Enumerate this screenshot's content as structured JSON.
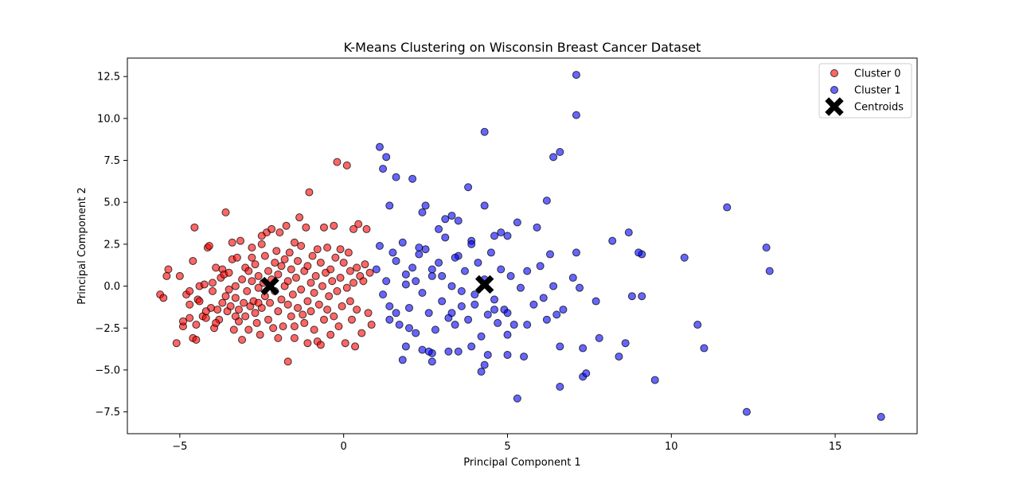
{
  "chart_data": {
    "type": "scatter",
    "title": "K-Means Clustering on Wisconsin Breast Cancer Dataset",
    "xlabel": "Principal Component 1",
    "ylabel": "Principal Component 2",
    "xlim": [
      -6.6,
      17.5
    ],
    "ylim": [
      -8.8,
      13.6
    ],
    "xticks": [
      -5,
      0,
      5,
      10,
      15
    ],
    "xtick_labels": [
      "−5",
      "0",
      "5",
      "10",
      "15"
    ],
    "yticks": [
      -7.5,
      -5.0,
      -2.5,
      0.0,
      2.5,
      5.0,
      7.5,
      10.0,
      12.5
    ],
    "ytick_labels": [
      "−7.5",
      "−5.0",
      "−2.5",
      "0.0",
      "2.5",
      "5.0",
      "7.5",
      "10.0",
      "12.5"
    ],
    "grid": false,
    "legend_position": "top-right",
    "series": [
      {
        "name": "Cluster 0",
        "color": "#ff0000",
        "marker": "circle",
        "points": [
          [
            -5.6,
            -0.5
          ],
          [
            -5.5,
            -0.7
          ],
          [
            -5.4,
            0.6
          ],
          [
            -5.35,
            1.0
          ],
          [
            -5.1,
            -3.4
          ],
          [
            -5.0,
            0.6
          ],
          [
            -4.9,
            -2.4
          ],
          [
            -4.9,
            -2.1
          ],
          [
            -4.8,
            -0.5
          ],
          [
            -4.7,
            -1.9
          ],
          [
            -4.7,
            -1.1
          ],
          [
            -4.7,
            -0.3
          ],
          [
            -4.6,
            -3.1
          ],
          [
            -4.6,
            1.5
          ],
          [
            -4.55,
            3.5
          ],
          [
            -4.5,
            -3.2
          ],
          [
            -4.5,
            -2.3
          ],
          [
            -4.45,
            -0.8
          ],
          [
            -4.4,
            -0.9
          ],
          [
            -4.4,
            0.0
          ],
          [
            -4.3,
            -1.8
          ],
          [
            -4.25,
            0.1
          ],
          [
            -4.2,
            -1.9
          ],
          [
            -4.15,
            2.3
          ],
          [
            -4.1,
            2.4
          ],
          [
            -4.05,
            -1.3
          ],
          [
            -4.0,
            -0.3
          ],
          [
            -4.0,
            0.2
          ],
          [
            -3.95,
            -2.5
          ],
          [
            -3.9,
            1.1
          ],
          [
            -3.85,
            -1.4
          ],
          [
            -3.8,
            -2.0
          ],
          [
            -3.75,
            0.5
          ],
          [
            -3.7,
            -1.0
          ],
          [
            -3.7,
            1.0
          ],
          [
            -3.65,
            0.7
          ],
          [
            -3.6,
            -0.6
          ],
          [
            -3.6,
            4.4
          ],
          [
            -3.55,
            -1.5
          ],
          [
            -3.5,
            -0.2
          ],
          [
            -3.5,
            0.8
          ],
          [
            -3.45,
            -1.2
          ],
          [
            -3.4,
            1.6
          ],
          [
            -3.4,
            2.6
          ],
          [
            -3.35,
            -2.6
          ],
          [
            -3.3,
            -0.7
          ],
          [
            -3.3,
            0.0
          ],
          [
            -3.25,
            1.7
          ],
          [
            -3.2,
            -1.4
          ],
          [
            -3.2,
            -2.1
          ],
          [
            -3.15,
            2.7
          ],
          [
            -3.1,
            -3.2
          ],
          [
            -3.1,
            0.4
          ],
          [
            -3.05,
            -1.0
          ],
          [
            -3.0,
            1.1
          ],
          [
            -3.0,
            -1.8
          ],
          [
            -2.95,
            -0.3
          ],
          [
            -2.9,
            0.9
          ],
          [
            -2.9,
            -2.6
          ],
          [
            -2.85,
            -1.2
          ],
          [
            -2.8,
            0.3
          ],
          [
            -2.8,
            2.3
          ],
          [
            -2.75,
            -0.9
          ],
          [
            -2.7,
            -1.6
          ],
          [
            -2.7,
            1.3
          ],
          [
            -2.65,
            -2.2
          ],
          [
            -2.6,
            -0.1
          ],
          [
            -2.6,
            0.6
          ],
          [
            -2.55,
            -2.9
          ],
          [
            -2.5,
            -1.3
          ],
          [
            -2.5,
            2.5
          ],
          [
            -2.45,
            0.2
          ],
          [
            -2.4,
            -0.6
          ],
          [
            -2.4,
            1.8
          ],
          [
            -2.35,
            3.2
          ],
          [
            -2.3,
            -2.0
          ],
          [
            -2.3,
            0.9
          ],
          [
            -2.25,
            -1.0
          ],
          [
            -2.2,
            3.4
          ],
          [
            -2.2,
            0.4
          ],
          [
            -2.15,
            -2.5
          ],
          [
            -2.1,
            1.4
          ],
          [
            -2.1,
            -0.3
          ],
          [
            -2.05,
            2.1
          ],
          [
            -2.0,
            -1.5
          ],
          [
            -2.0,
            0.7
          ],
          [
            -1.95,
            3.2
          ],
          [
            -1.9,
            -0.8
          ],
          [
            -1.9,
            1.2
          ],
          [
            -1.85,
            -2.4
          ],
          [
            -1.8,
            0.0
          ],
          [
            -1.8,
            1.6
          ],
          [
            -1.75,
            3.6
          ],
          [
            -1.7,
            -1.1
          ],
          [
            -1.7,
            0.3
          ],
          [
            -1.65,
            2.0
          ],
          [
            -1.6,
            -1.8
          ],
          [
            -1.6,
            1.0
          ],
          [
            -1.55,
            -0.5
          ],
          [
            -1.5,
            2.6
          ],
          [
            -1.5,
            -3.1
          ],
          [
            -1.45,
            0.5
          ],
          [
            -1.4,
            -1.3
          ],
          [
            -1.4,
            1.5
          ],
          [
            -1.35,
            4.1
          ],
          [
            -1.3,
            -0.2
          ],
          [
            -1.3,
            2.4
          ],
          [
            -1.25,
            -1.7
          ],
          [
            -1.2,
            0.9
          ],
          [
            -1.2,
            -2.2
          ],
          [
            -1.15,
            3.5
          ],
          [
            -1.1,
            1.2
          ],
          [
            -1.1,
            -0.9
          ],
          [
            -1.05,
            5.6
          ],
          [
            -1.0,
            0.2
          ],
          [
            -1.0,
            -1.5
          ],
          [
            -0.95,
            1.8
          ],
          [
            -0.9,
            -0.4
          ],
          [
            -0.9,
            -2.6
          ],
          [
            -0.85,
            0.6
          ],
          [
            -0.8,
            2.2
          ],
          [
            -0.8,
            -3.3
          ],
          [
            -0.75,
            -1.1
          ],
          [
            -0.7,
            1.4
          ],
          [
            -0.7,
            -3.5
          ],
          [
            -0.65,
            0.0
          ],
          [
            -0.6,
            3.5
          ],
          [
            -0.6,
            -2.0
          ],
          [
            -0.55,
            0.8
          ],
          [
            -0.5,
            -1.4
          ],
          [
            -0.5,
            2.3
          ],
          [
            -0.45,
            -0.6
          ],
          [
            -0.4,
            1.0
          ],
          [
            -0.4,
            -2.9
          ],
          [
            -0.35,
            0.3
          ],
          [
            -0.3,
            3.6
          ],
          [
            -0.3,
            -1.8
          ],
          [
            -0.25,
            1.7
          ],
          [
            -0.2,
            7.4
          ],
          [
            -0.2,
            -0.3
          ],
          [
            -0.15,
            -2.4
          ],
          [
            -0.1,
            2.2
          ],
          [
            -0.1,
            0.5
          ],
          [
            -0.05,
            -1.2
          ],
          [
            0.0,
            1.4
          ],
          [
            0.05,
            -3.4
          ],
          [
            0.1,
            -0.1
          ],
          [
            0.1,
            7.2
          ],
          [
            0.15,
            2.0
          ],
          [
            0.2,
            -0.9
          ],
          [
            0.2,
            0.9
          ],
          [
            0.25,
            -2.0
          ],
          [
            0.3,
            3.4
          ],
          [
            0.3,
            0.2
          ],
          [
            0.35,
            -3.6
          ],
          [
            0.4,
            1.1
          ],
          [
            0.4,
            -1.4
          ],
          [
            0.45,
            3.7
          ],
          [
            0.5,
            0.6
          ],
          [
            0.55,
            -2.8
          ],
          [
            0.6,
            0.3
          ],
          [
            0.65,
            1.3
          ],
          [
            0.7,
            3.4
          ],
          [
            0.75,
            -1.6
          ],
          [
            0.8,
            0.8
          ],
          [
            0.85,
            -2.3
          ],
          [
            -1.5,
            -2.4
          ],
          [
            -2.6,
            -1.0
          ],
          [
            -3.3,
            -1.8
          ],
          [
            -2.0,
            -3.1
          ],
          [
            -1.1,
            -3.4
          ],
          [
            -1.7,
            -4.5
          ],
          [
            -4.2,
            -1.5
          ],
          [
            -3.9,
            -2.2
          ],
          [
            -2.5,
            3.0
          ],
          [
            -2.8,
            1.7
          ]
        ]
      },
      {
        "name": "Cluster 1",
        "color": "#0000ff",
        "marker": "circle",
        "points": [
          [
            1.1,
            8.3
          ],
          [
            1.2,
            7.0
          ],
          [
            1.3,
            7.7
          ],
          [
            1.4,
            4.8
          ],
          [
            1.6,
            6.5
          ],
          [
            2.1,
            6.4
          ],
          [
            2.4,
            4.4
          ],
          [
            2.5,
            4.8
          ],
          [
            2.9,
            3.4
          ],
          [
            3.1,
            4.0
          ],
          [
            3.3,
            4.2
          ],
          [
            3.5,
            3.9
          ],
          [
            3.8,
            5.9
          ],
          [
            4.3,
            9.2
          ],
          [
            4.3,
            4.8
          ],
          [
            4.6,
            3.0
          ],
          [
            4.8,
            3.2
          ],
          [
            5.0,
            3.0
          ],
          [
            5.3,
            3.8
          ],
          [
            5.9,
            3.5
          ],
          [
            6.2,
            5.1
          ],
          [
            6.4,
            7.7
          ],
          [
            6.6,
            8.0
          ],
          [
            7.1,
            12.6
          ],
          [
            7.1,
            10.2
          ],
          [
            1.0,
            1.0
          ],
          [
            1.1,
            2.4
          ],
          [
            1.2,
            -0.5
          ],
          [
            1.3,
            0.3
          ],
          [
            1.4,
            -1.2
          ],
          [
            1.5,
            2.0
          ],
          [
            1.6,
            -1.6
          ],
          [
            1.7,
            -2.3
          ],
          [
            1.8,
            2.6
          ],
          [
            1.9,
            0.1
          ],
          [
            2.0,
            -1.3
          ],
          [
            2.1,
            1.1
          ],
          [
            2.2,
            -2.8
          ],
          [
            2.3,
            1.9
          ],
          [
            2.4,
            -0.4
          ],
          [
            2.5,
            2.2
          ],
          [
            2.6,
            -1.6
          ],
          [
            2.7,
            0.6
          ],
          [
            2.8,
            -2.6
          ],
          [
            2.9,
            1.4
          ],
          [
            3.0,
            -0.9
          ],
          [
            3.1,
            2.9
          ],
          [
            3.2,
            -1.9
          ],
          [
            3.3,
            0.0
          ],
          [
            3.4,
            -2.3
          ],
          [
            3.5,
            1.8
          ],
          [
            3.6,
            -1.2
          ],
          [
            3.7,
            0.9
          ],
          [
            3.8,
            -2.0
          ],
          [
            3.9,
            2.7
          ],
          [
            4.0,
            -0.5
          ],
          [
            4.1,
            1.4
          ],
          [
            4.2,
            -3.0
          ],
          [
            4.3,
            0.4
          ],
          [
            4.4,
            -1.7
          ],
          [
            4.5,
            2.0
          ],
          [
            4.6,
            -0.8
          ],
          [
            4.7,
            -2.2
          ],
          [
            4.8,
            1.0
          ],
          [
            4.9,
            -1.4
          ],
          [
            5.0,
            -2.9
          ],
          [
            5.1,
            0.6
          ],
          [
            5.2,
            -2.3
          ],
          [
            5.4,
            -0.1
          ],
          [
            5.6,
            0.9
          ],
          [
            5.8,
            -1.1
          ],
          [
            6.0,
            1.2
          ],
          [
            6.1,
            -0.7
          ],
          [
            6.2,
            -2.0
          ],
          [
            6.3,
            1.9
          ],
          [
            6.4,
            0.0
          ],
          [
            6.5,
            -1.7
          ],
          [
            6.6,
            -3.6
          ],
          [
            6.7,
            -1.4
          ],
          [
            7.0,
            0.5
          ],
          [
            7.1,
            2.0
          ],
          [
            7.2,
            -0.1
          ],
          [
            7.3,
            -3.7
          ],
          [
            7.7,
            -0.9
          ],
          [
            7.8,
            -3.1
          ],
          [
            8.2,
            2.7
          ],
          [
            8.7,
            3.2
          ],
          [
            8.8,
            -0.6
          ],
          [
            9.1,
            -0.6
          ],
          [
            9.1,
            1.9
          ],
          [
            9.0,
            2.0
          ],
          [
            10.4,
            1.7
          ],
          [
            11.7,
            4.7
          ],
          [
            10.8,
            -2.3
          ],
          [
            11.0,
            -3.7
          ],
          [
            12.9,
            2.3
          ],
          [
            13.0,
            0.9
          ],
          [
            8.6,
            -3.4
          ],
          [
            8.4,
            -4.2
          ],
          [
            9.5,
            -5.6
          ],
          [
            7.3,
            -5.4
          ],
          [
            7.4,
            -5.2
          ],
          [
            6.6,
            -6.0
          ],
          [
            5.3,
            -6.7
          ],
          [
            4.2,
            -5.1
          ],
          [
            4.3,
            -4.7
          ],
          [
            3.5,
            -3.9
          ],
          [
            2.7,
            -4.5
          ],
          [
            2.7,
            -4.0
          ],
          [
            2.4,
            -3.8
          ],
          [
            1.9,
            -3.6
          ],
          [
            1.8,
            -4.4
          ],
          [
            12.3,
            -7.5
          ],
          [
            16.4,
            -7.8
          ],
          [
            1.4,
            -2.0
          ],
          [
            2.0,
            -2.5
          ],
          [
            2.6,
            -3.9
          ],
          [
            3.2,
            -3.9
          ],
          [
            3.9,
            -3.6
          ],
          [
            4.4,
            -4.1
          ],
          [
            5.0,
            -4.1
          ],
          [
            5.5,
            -4.2
          ],
          [
            1.9,
            0.7
          ],
          [
            2.2,
            0.3
          ],
          [
            2.7,
            1.0
          ],
          [
            3.3,
            -1.6
          ],
          [
            3.6,
            -0.3
          ],
          [
            4.0,
            -1.1
          ],
          [
            4.6,
            -1.4
          ],
          [
            5.0,
            -1.6
          ],
          [
            5.6,
            -2.3
          ],
          [
            1.6,
            1.5
          ],
          [
            2.3,
            2.3
          ],
          [
            3.0,
            0.6
          ],
          [
            3.4,
            1.7
          ],
          [
            3.9,
            2.5
          ]
        ]
      },
      {
        "name": "Centroids",
        "color": "#000000",
        "marker": "X",
        "points": [
          [
            -2.25,
            0.0
          ],
          [
            4.3,
            0.1
          ]
        ]
      }
    ]
  }
}
